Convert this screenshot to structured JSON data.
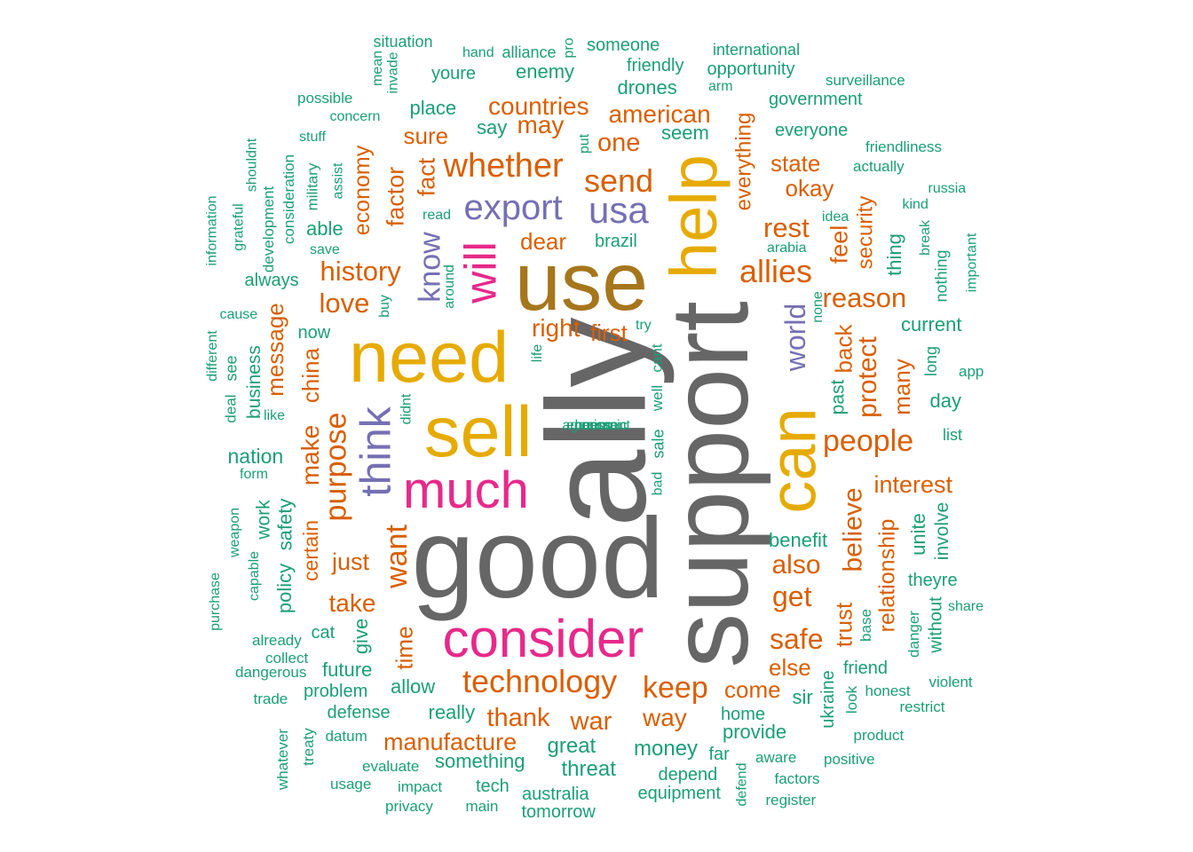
{
  "palette": {
    "gray": "#666666",
    "mustard": "#E6AB02",
    "olive": "#A6761D",
    "magenta": "#E7298A",
    "purple": "#7570B3",
    "orange": "#D95F02",
    "teal": "#1B9E77"
  },
  "words": [
    {
      "text": "ally",
      "color": "gray"
    },
    {
      "text": "good",
      "color": "gray"
    },
    {
      "text": "support",
      "color": "gray"
    },
    {
      "text": "use",
      "color": "olive"
    },
    {
      "text": "need",
      "color": "mustard"
    },
    {
      "text": "sell",
      "color": "mustard"
    },
    {
      "text": "help",
      "color": "mustard"
    },
    {
      "text": "can",
      "color": "mustard"
    },
    {
      "text": "consider",
      "color": "magenta"
    },
    {
      "text": "much",
      "color": "magenta"
    },
    {
      "text": "will",
      "color": "magenta"
    },
    {
      "text": "think",
      "color": "purple"
    },
    {
      "text": "export",
      "color": "purple"
    },
    {
      "text": "usa",
      "color": "purple"
    },
    {
      "text": "know",
      "color": "purple"
    },
    {
      "text": "world",
      "color": "purple"
    },
    {
      "text": "whether",
      "color": "orange"
    },
    {
      "text": "technology",
      "color": "orange"
    },
    {
      "text": "allies",
      "color": "orange"
    },
    {
      "text": "send",
      "color": "orange"
    },
    {
      "text": "purpose",
      "color": "orange"
    },
    {
      "text": "people",
      "color": "orange"
    },
    {
      "text": "keep",
      "color": "orange"
    },
    {
      "text": "history",
      "color": "orange"
    },
    {
      "text": "reason",
      "color": "orange"
    },
    {
      "text": "rest",
      "color": "orange"
    },
    {
      "text": "want",
      "color": "orange"
    },
    {
      "text": "countries",
      "color": "orange"
    },
    {
      "text": "american",
      "color": "orange"
    },
    {
      "text": "one",
      "color": "orange"
    },
    {
      "text": "may",
      "color": "orange"
    },
    {
      "text": "love",
      "color": "orange"
    },
    {
      "text": "believe",
      "color": "orange"
    },
    {
      "text": "protect",
      "color": "orange"
    },
    {
      "text": "get",
      "color": "orange"
    },
    {
      "text": "safe",
      "color": "orange"
    },
    {
      "text": "also",
      "color": "orange"
    },
    {
      "text": "thank",
      "color": "orange"
    },
    {
      "text": "war",
      "color": "orange"
    },
    {
      "text": "way",
      "color": "orange"
    },
    {
      "text": "manufacture",
      "color": "orange"
    },
    {
      "text": "right",
      "color": "orange"
    },
    {
      "text": "first",
      "color": "orange"
    },
    {
      "text": "interest",
      "color": "orange"
    },
    {
      "text": "relationship",
      "color": "orange"
    },
    {
      "text": "make",
      "color": "orange"
    },
    {
      "text": "china",
      "color": "orange"
    },
    {
      "text": "take",
      "color": "orange"
    },
    {
      "text": "just",
      "color": "orange"
    },
    {
      "text": "time",
      "color": "orange"
    },
    {
      "text": "message",
      "color": "orange"
    },
    {
      "text": "economy",
      "color": "orange"
    },
    {
      "text": "factor",
      "color": "orange"
    },
    {
      "text": "fact",
      "color": "orange"
    },
    {
      "text": "sure",
      "color": "orange"
    },
    {
      "text": "dear",
      "color": "orange"
    },
    {
      "text": "state",
      "color": "orange"
    },
    {
      "text": "okay",
      "color": "orange"
    },
    {
      "text": "everything",
      "color": "orange"
    },
    {
      "text": "feel",
      "color": "orange"
    },
    {
      "text": "security",
      "color": "orange"
    },
    {
      "text": "back",
      "color": "orange"
    },
    {
      "text": "many",
      "color": "orange"
    },
    {
      "text": "trust",
      "color": "orange"
    },
    {
      "text": "else",
      "color": "orange"
    },
    {
      "text": "come",
      "color": "orange"
    },
    {
      "text": "certain",
      "color": "orange"
    },
    {
      "text": "situation",
      "color": "teal"
    },
    {
      "text": "mean",
      "color": "teal"
    },
    {
      "text": "invade",
      "color": "teal"
    },
    {
      "text": "hand",
      "color": "teal"
    },
    {
      "text": "alliance",
      "color": "teal"
    },
    {
      "text": "pro",
      "color": "teal"
    },
    {
      "text": "someone",
      "color": "teal"
    },
    {
      "text": "international",
      "color": "teal"
    },
    {
      "text": "youre",
      "color": "teal"
    },
    {
      "text": "enemy",
      "color": "teal"
    },
    {
      "text": "friendly",
      "color": "teal"
    },
    {
      "text": "opportunity",
      "color": "teal"
    },
    {
      "text": "surveillance",
      "color": "teal"
    },
    {
      "text": "drones",
      "color": "teal"
    },
    {
      "text": "arm",
      "color": "teal"
    },
    {
      "text": "possible",
      "color": "teal"
    },
    {
      "text": "place",
      "color": "teal"
    },
    {
      "text": "government",
      "color": "teal"
    },
    {
      "text": "concern",
      "color": "teal"
    },
    {
      "text": "say",
      "color": "teal"
    },
    {
      "text": "seem",
      "color": "teal"
    },
    {
      "text": "everyone",
      "color": "teal"
    },
    {
      "text": "stuff",
      "color": "teal"
    },
    {
      "text": "put",
      "color": "teal"
    },
    {
      "text": "friendliness",
      "color": "teal"
    },
    {
      "text": "shouldnt",
      "color": "teal"
    },
    {
      "text": "consideration",
      "color": "teal"
    },
    {
      "text": "military",
      "color": "teal"
    },
    {
      "text": "assist",
      "color": "teal"
    },
    {
      "text": "actually",
      "color": "teal"
    },
    {
      "text": "russia",
      "color": "teal"
    },
    {
      "text": "grateful",
      "color": "teal"
    },
    {
      "text": "development",
      "color": "teal"
    },
    {
      "text": "read",
      "color": "teal"
    },
    {
      "text": "kind",
      "color": "teal"
    },
    {
      "text": "information",
      "color": "teal"
    },
    {
      "text": "able",
      "color": "teal"
    },
    {
      "text": "idea",
      "color": "teal"
    },
    {
      "text": "save",
      "color": "teal"
    },
    {
      "text": "brazil",
      "color": "teal"
    },
    {
      "text": "arabia",
      "color": "teal"
    },
    {
      "text": "thing",
      "color": "teal"
    },
    {
      "text": "break",
      "color": "teal"
    },
    {
      "text": "important",
      "color": "teal"
    },
    {
      "text": "always",
      "color": "teal"
    },
    {
      "text": "nothing",
      "color": "teal"
    },
    {
      "text": "around",
      "color": "teal"
    },
    {
      "text": "buy",
      "color": "teal"
    },
    {
      "text": "cause",
      "color": "teal"
    },
    {
      "text": "none",
      "color": "teal"
    },
    {
      "text": "try",
      "color": "teal"
    },
    {
      "text": "current",
      "color": "teal"
    },
    {
      "text": "now",
      "color": "teal"
    },
    {
      "text": "different",
      "color": "teal"
    },
    {
      "text": "see",
      "color": "teal"
    },
    {
      "text": "business",
      "color": "teal"
    },
    {
      "text": "life",
      "color": "teal"
    },
    {
      "text": "cant",
      "color": "teal"
    },
    {
      "text": "long",
      "color": "teal"
    },
    {
      "text": "app",
      "color": "teal"
    },
    {
      "text": "deal",
      "color": "teal"
    },
    {
      "text": "didnt",
      "color": "teal"
    },
    {
      "text": "well",
      "color": "teal"
    },
    {
      "text": "past",
      "color": "teal"
    },
    {
      "text": "day",
      "color": "teal"
    },
    {
      "text": "like",
      "color": "teal"
    },
    {
      "text": "list",
      "color": "teal"
    },
    {
      "text": "nation",
      "color": "teal"
    },
    {
      "text": "sale",
      "color": "teal"
    },
    {
      "text": "economic",
      "color": "teal"
    },
    {
      "text": "miss",
      "color": "teal"
    },
    {
      "text": "form",
      "color": "teal"
    },
    {
      "text": "bad",
      "color": "teal"
    },
    {
      "text": "unite",
      "color": "teal"
    },
    {
      "text": "involve",
      "color": "teal"
    },
    {
      "text": "human",
      "color": "teal"
    },
    {
      "text": "agreement",
      "color": "teal"
    },
    {
      "text": "weapon",
      "color": "teal"
    },
    {
      "text": "work",
      "color": "teal"
    },
    {
      "text": "safety",
      "color": "teal"
    },
    {
      "text": "policy",
      "color": "teal"
    },
    {
      "text": "benefit",
      "color": "teal"
    },
    {
      "text": "theyre",
      "color": "teal"
    },
    {
      "text": "capable",
      "color": "teal"
    },
    {
      "text": "purchase",
      "color": "teal"
    },
    {
      "text": "without",
      "color": "teal"
    },
    {
      "text": "share",
      "color": "teal"
    },
    {
      "text": "give",
      "color": "teal"
    },
    {
      "text": "cat",
      "color": "teal"
    },
    {
      "text": "base",
      "color": "teal"
    },
    {
      "text": "danger",
      "color": "teal"
    },
    {
      "text": "already",
      "color": "teal"
    },
    {
      "text": "collect",
      "color": "teal"
    },
    {
      "text": "future",
      "color": "teal"
    },
    {
      "text": "friend",
      "color": "teal"
    },
    {
      "text": "dangerous",
      "color": "teal"
    },
    {
      "text": "ukraine",
      "color": "teal"
    },
    {
      "text": "allow",
      "color": "teal"
    },
    {
      "text": "problem",
      "color": "teal"
    },
    {
      "text": "trade",
      "color": "teal"
    },
    {
      "text": "look",
      "color": "teal"
    },
    {
      "text": "honest",
      "color": "teal"
    },
    {
      "text": "violent",
      "color": "teal"
    },
    {
      "text": "sir",
      "color": "teal"
    },
    {
      "text": "restrict",
      "color": "teal"
    },
    {
      "text": "really",
      "color": "teal"
    },
    {
      "text": "defense",
      "color": "teal"
    },
    {
      "text": "home",
      "color": "teal"
    },
    {
      "text": "whatever",
      "color": "teal"
    },
    {
      "text": "treaty",
      "color": "teal"
    },
    {
      "text": "datum",
      "color": "teal"
    },
    {
      "text": "provide",
      "color": "teal"
    },
    {
      "text": "product",
      "color": "teal"
    },
    {
      "text": "great",
      "color": "teal"
    },
    {
      "text": "money",
      "color": "teal"
    },
    {
      "text": "far",
      "color": "teal"
    },
    {
      "text": "aware",
      "color": "teal"
    },
    {
      "text": "positive",
      "color": "teal"
    },
    {
      "text": "evaluate",
      "color": "teal"
    },
    {
      "text": "something",
      "color": "teal"
    },
    {
      "text": "threat",
      "color": "teal"
    },
    {
      "text": "depend",
      "color": "teal"
    },
    {
      "text": "defend",
      "color": "teal"
    },
    {
      "text": "factors",
      "color": "teal"
    },
    {
      "text": "usage",
      "color": "teal"
    },
    {
      "text": "impact",
      "color": "teal"
    },
    {
      "text": "tech",
      "color": "teal"
    },
    {
      "text": "australia",
      "color": "teal"
    },
    {
      "text": "equipment",
      "color": "teal"
    },
    {
      "text": "register",
      "color": "teal"
    },
    {
      "text": "privacy",
      "color": "teal"
    },
    {
      "text": "main",
      "color": "teal"
    },
    {
      "text": "tomorrow",
      "color": "teal"
    }
  ]
}
